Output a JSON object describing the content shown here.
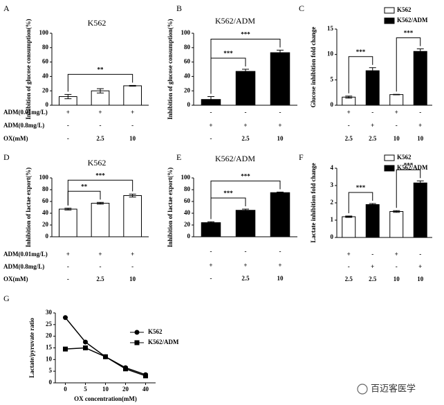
{
  "chart_data": [
    {
      "type": "bar",
      "panel": "A",
      "title": "K562",
      "ylabel": "Inhibition of glucose consumption(%)",
      "ylim": [
        0,
        100
      ],
      "yticks": [
        0,
        20,
        40,
        60,
        80,
        100
      ],
      "values": [
        12,
        20,
        27
      ],
      "errors": [
        3,
        3,
        0.5
      ],
      "color": "#ffffff",
      "annotations": [
        {
          "text": "**",
          "from": 0,
          "to": 2
        }
      ],
      "rows": [
        {
          "label": "ADM(0.01mg/L)",
          "cells": [
            "+",
            "+",
            "+"
          ]
        },
        {
          "label": "ADM(0.8mg/L)",
          "cells": [
            "-",
            "-",
            "-"
          ]
        },
        {
          "label": "OX(mM)",
          "cells": [
            "-",
            "2.5",
            "10"
          ]
        }
      ]
    },
    {
      "type": "bar",
      "panel": "B",
      "title": "K562/ADM",
      "ylabel": "Inhibition of glucose consumption(%)",
      "ylim": [
        0,
        100
      ],
      "yticks": [
        0,
        20,
        40,
        60,
        80,
        100
      ],
      "values": [
        8,
        47,
        73
      ],
      "errors": [
        4,
        3,
        3.5
      ],
      "color": "#000000",
      "annotations": [
        {
          "text": "***",
          "from": 0,
          "to": 1
        },
        {
          "text": "***",
          "from": 0,
          "to": 2
        }
      ],
      "rows": [
        {
          "cells": [
            "-",
            "-",
            "-"
          ]
        },
        {
          "cells": [
            "+",
            "+",
            "+"
          ]
        },
        {
          "cells": [
            "-",
            "2.5",
            "10"
          ]
        }
      ]
    },
    {
      "type": "bar",
      "panel": "C",
      "ylabel": "Glucose inhibition fold change",
      "ylim": [
        0,
        15
      ],
      "yticks": [
        0,
        5,
        10,
        15
      ],
      "series": [
        {
          "name": "K562",
          "color": "#ffffff",
          "values": [
            1.6,
            null,
            2.1,
            null
          ],
          "errors": [
            0.2,
            null,
            0.05,
            null
          ]
        },
        {
          "name": "K562/ADM",
          "color": "#000000",
          "values": [
            null,
            6.8,
            null,
            10.6
          ],
          "errors": [
            null,
            0.6,
            null,
            0.5
          ]
        }
      ],
      "annotations": [
        {
          "text": "***",
          "from": 0,
          "to": 1
        },
        {
          "text": "***",
          "from": 2,
          "to": 3
        }
      ],
      "rows": [
        {
          "cells": [
            "+",
            "-",
            "+",
            "-"
          ]
        },
        {
          "cells": [
            "-",
            "+",
            "-",
            "+"
          ]
        },
        {
          "cells": [
            "2.5",
            "2.5",
            "10",
            "10"
          ]
        }
      ]
    },
    {
      "type": "bar",
      "panel": "D",
      "title": "K562",
      "ylabel": "Inhibition of lactae export(%)",
      "ylim": [
        0,
        100
      ],
      "yticks": [
        0,
        20,
        40,
        60,
        80,
        100
      ],
      "values": [
        47,
        57,
        70
      ],
      "errors": [
        1.5,
        1.5,
        2.5
      ],
      "color": "#ffffff",
      "annotations": [
        {
          "text": "**",
          "from": 0,
          "to": 1
        },
        {
          "text": "***",
          "from": 0,
          "to": 2
        }
      ],
      "rows": [
        {
          "label": "ADM(0.01mg/L)",
          "cells": [
            "+",
            "+",
            "+"
          ]
        },
        {
          "label": "ADM(0.8mg/L)",
          "cells": [
            "-",
            "-",
            "-"
          ]
        },
        {
          "label": "OX(mM)",
          "cells": [
            "-",
            "2.5",
            "10"
          ]
        }
      ]
    },
    {
      "type": "bar",
      "panel": "E",
      "title": "K562/ADM",
      "ylabel": "Inhibition of lactae export(%)",
      "ylim": [
        0,
        100
      ],
      "yticks": [
        0,
        20,
        40,
        60,
        80,
        100
      ],
      "values": [
        24,
        45,
        75
      ],
      "errors": [
        1.5,
        2,
        1
      ],
      "color": "#000000",
      "annotations": [
        {
          "text": "***",
          "from": 0,
          "to": 1
        },
        {
          "text": "***",
          "from": 0,
          "to": 2
        }
      ],
      "rows": [
        {
          "cells": [
            "-",
            "-",
            "-"
          ]
        },
        {
          "cells": [
            "+",
            "+",
            "+"
          ]
        },
        {
          "cells": [
            "-",
            "2.5",
            "10"
          ]
        }
      ]
    },
    {
      "type": "bar",
      "panel": "F",
      "ylabel": "Lactate inhibition fold change",
      "ylim": [
        0,
        4
      ],
      "yticks": [
        0,
        1,
        2,
        3,
        4
      ],
      "series": [
        {
          "name": "K562",
          "color": "#ffffff",
          "values": [
            1.2,
            null,
            1.5,
            null
          ],
          "errors": [
            0.04,
            null,
            0.05,
            null
          ]
        },
        {
          "name": "K562/ADM",
          "color": "#000000",
          "values": [
            null,
            1.9,
            null,
            3.15
          ],
          "errors": [
            null,
            0.06,
            null,
            0.12
          ]
        }
      ],
      "annotations": [
        {
          "text": "***",
          "from": 0,
          "to": 1
        },
        {
          "text": "***",
          "from": 2,
          "to": 3
        }
      ],
      "rows": [
        {
          "cells": [
            "+",
            "-",
            "+",
            "-"
          ]
        },
        {
          "cells": [
            "-",
            "+",
            "-",
            "+"
          ]
        },
        {
          "cells": [
            "2.5",
            "2.5",
            "10",
            "10"
          ]
        }
      ]
    },
    {
      "type": "line",
      "panel": "G",
      "xlabel": "OX concentration(mM)",
      "ylabel": "Lactate/pyruvate ratio",
      "categories": [
        "0",
        "5",
        "10",
        "20",
        "40"
      ],
      "ylim": [
        0,
        30
      ],
      "yticks": [
        0,
        5,
        10,
        15,
        20,
        25,
        30
      ],
      "series": [
        {
          "name": "K562",
          "color": "#000000",
          "marker": "circle",
          "values": [
            28,
            17.5,
            11.2,
            6.5,
            3.5
          ]
        },
        {
          "name": "K562/ADM",
          "color": "#000000",
          "marker": "square",
          "values": [
            14.5,
            15,
            11.2,
            6,
            3
          ]
        }
      ]
    }
  ],
  "watermark": "百迈客医学"
}
